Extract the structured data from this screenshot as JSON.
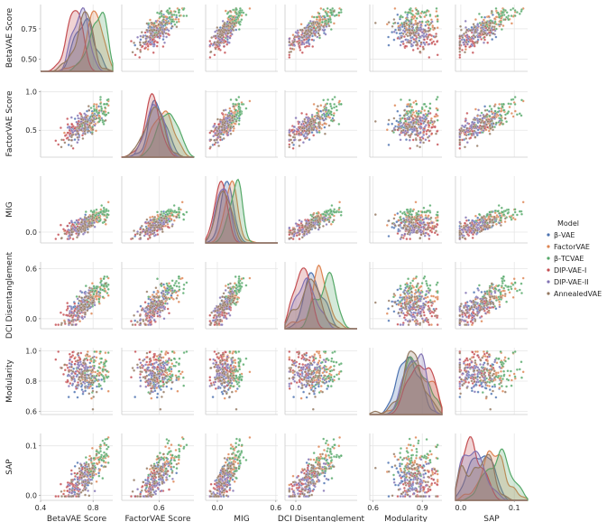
{
  "chart_data": {
    "type": "pairplot",
    "title": "",
    "variables": [
      "BetaVAE Score",
      "FactorVAE Score",
      "MIG",
      "DCI Disentanglement",
      "Modularity",
      "SAP"
    ],
    "ranges": {
      "BetaVAE Score": [
        0.4,
        0.95
      ],
      "FactorVAE Score": [
        0.15,
        1.02
      ],
      "MIG": [
        -0.12,
        0.62
      ],
      "DCI Disentanglement": [
        -0.12,
        0.68
      ],
      "Modularity": [
        0.58,
        1.02
      ],
      "SAP": [
        -0.01,
        0.125
      ]
    },
    "row_ticks": [
      {
        "values": [
          0.5,
          0.75
        ],
        "labels": [
          "0.50",
          "0.75"
        ]
      },
      {
        "values": [
          0.5,
          1.0
        ],
        "labels": [
          "0.5",
          "1.0"
        ]
      },
      {
        "values": [
          0.0
        ],
        "labels": [
          "0.0"
        ]
      },
      {
        "values": [
          0.0,
          0.6
        ],
        "labels": [
          "0.0",
          "0.6"
        ]
      },
      {
        "values": [
          0.6,
          0.8,
          1.0
        ],
        "labels": [
          "0.6",
          "0.8",
          "1.0"
        ]
      },
      {
        "values": [
          0.0,
          0.1
        ],
        "labels": [
          "0.0",
          "0.1"
        ]
      }
    ],
    "col_ticks": [
      {
        "values": [
          0.4,
          0.8
        ],
        "labels": [
          "0.4",
          "0.8"
        ]
      },
      {
        "values": [
          0.6
        ],
        "labels": [
          "0.6"
        ]
      },
      {
        "values": [
          0.0,
          0.6
        ],
        "labels": [
          "0.0",
          "0.6"
        ]
      },
      {
        "values": [
          0.0
        ],
        "labels": [
          "0.0"
        ]
      },
      {
        "values": [
          0.6,
          0.9
        ],
        "labels": [
          "0.6",
          "0.9"
        ]
      },
      {
        "values": [
          0.0,
          0.1
        ],
        "labels": [
          "0.0",
          "0.1"
        ]
      }
    ],
    "legend": {
      "title": "Model",
      "placement": "right",
      "entries": [
        "β-VAE",
        "FactorVAE",
        "β-TCVAE",
        "DIP-VAE-I",
        "DIP-VAE-II",
        "AnnealedVAE"
      ]
    },
    "series": [
      {
        "name": "β-VAE",
        "color": "#4c72b0",
        "means": [
          0.74,
          0.58,
          0.1,
          0.2,
          0.82,
          0.04
        ],
        "points_per_model": 55
      },
      {
        "name": "FactorVAE",
        "color": "#dd8452",
        "means": [
          0.8,
          0.65,
          0.14,
          0.26,
          0.86,
          0.06
        ],
        "points_per_model": 55
      },
      {
        "name": "β-TCVAE",
        "color": "#55a868",
        "means": [
          0.83,
          0.7,
          0.18,
          0.32,
          0.86,
          0.07
        ],
        "points_per_model": 55
      },
      {
        "name": "DIP-VAE-I",
        "color": "#c44e52",
        "means": [
          0.66,
          0.52,
          0.03,
          0.06,
          0.88,
          0.02
        ],
        "points_per_model": 55
      },
      {
        "name": "DIP-VAE-II",
        "color": "#8172b3",
        "means": [
          0.7,
          0.56,
          0.05,
          0.1,
          0.86,
          0.025
        ],
        "points_per_model": 55
      },
      {
        "name": "AnnealedVAE",
        "color": "#937860",
        "means": [
          0.74,
          0.56,
          0.08,
          0.16,
          0.84,
          0.035
        ],
        "points_per_model": 55
      }
    ]
  }
}
